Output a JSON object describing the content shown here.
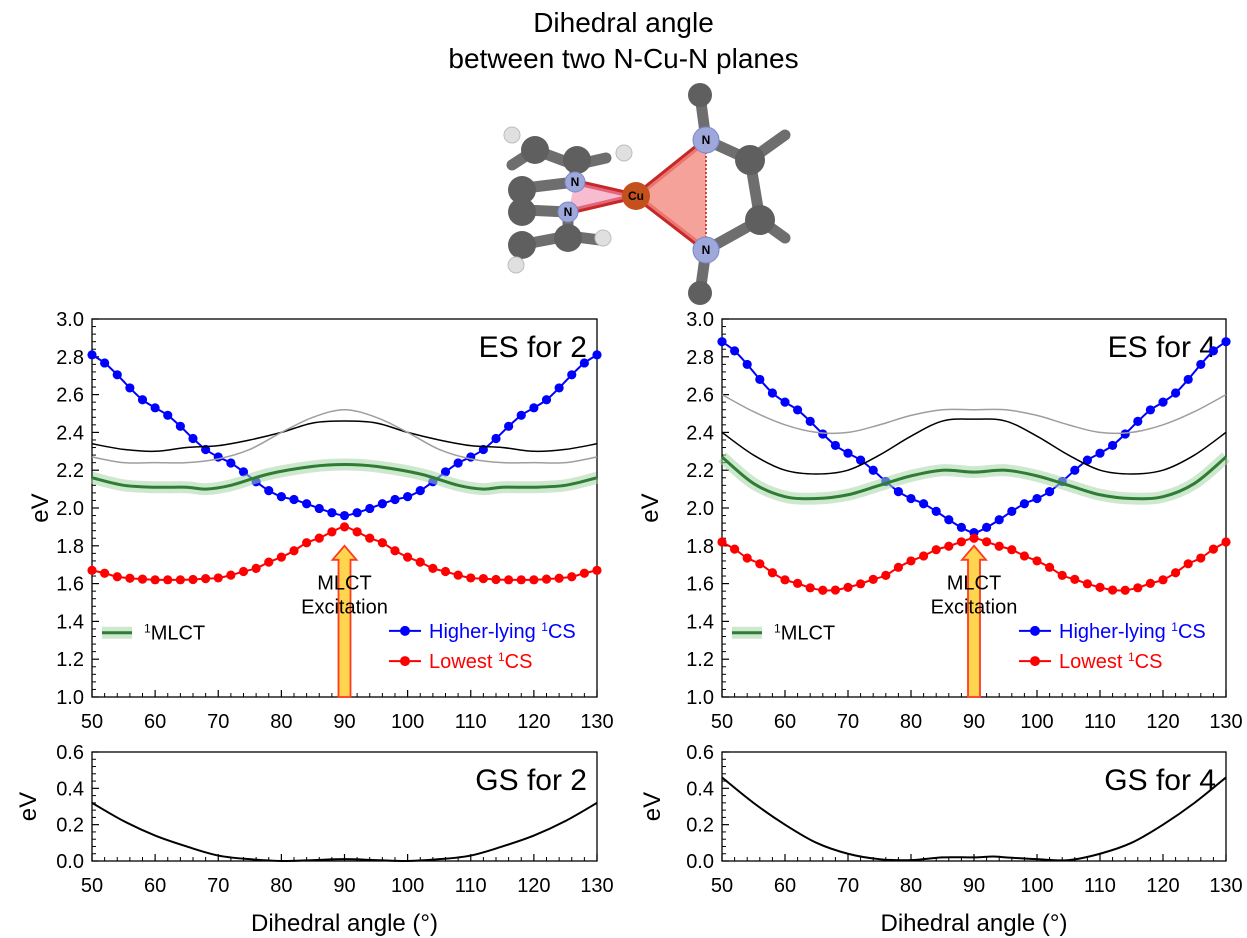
{
  "header": {
    "title_line1": "Dihedral angle",
    "title_line2": "between two N-Cu-N planes"
  },
  "molecule": {
    "atom_labels": [
      "N",
      "N",
      "Cu",
      "N",
      "N"
    ]
  },
  "colors": {
    "higher_cs": "#0000ff",
    "lowest_cs": "#ff0000",
    "mlct": "#2e7d32",
    "mlct_glow": "#a5d6a7",
    "upper_black": "#000000",
    "upper_gray": "#9e9e9e",
    "arrow_fill": "#ffd54f",
    "arrow_stroke": "#ff3b1f",
    "triangle": "#f28b82"
  },
  "legend": {
    "mlct_label": "MLCT",
    "mlct_sup": "1",
    "higher_label": "Higher-lying ",
    "higher_sup": "1",
    "higher_tail": "CS",
    "lowest_label": "Lowest ",
    "lowest_sup": "1",
    "lowest_tail": "CS"
  },
  "chart_data": [
    {
      "id": "es2",
      "type": "line",
      "panel_label": "ES for 2",
      "ylabel": "eV",
      "xlim": [
        50,
        130
      ],
      "ylim": [
        1.0,
        3.0
      ],
      "yticks": [
        "1.0",
        "1.2",
        "1.4",
        "1.6",
        "1.8",
        "2.0",
        "2.2",
        "2.4",
        "2.6",
        "2.8",
        "3.0"
      ],
      "xticks": [
        "50",
        "60",
        "70",
        "80",
        "90",
        "100",
        "110",
        "120",
        "130"
      ],
      "annotation": [
        "MLCT",
        "Excitation"
      ],
      "annotation_x": 90,
      "series": [
        {
          "key": "higher",
          "points": [
            [
              50,
              2.81
            ],
            [
              60,
              2.53
            ],
            [
              70,
              2.27
            ],
            [
              80,
              2.06
            ],
            [
              90,
              1.96
            ],
            [
              100,
              2.06
            ],
            [
              110,
              2.27
            ],
            [
              120,
              2.53
            ],
            [
              130,
              2.81
            ]
          ]
        },
        {
          "key": "lowest",
          "points": [
            [
              50,
              1.67
            ],
            [
              55,
              1.63
            ],
            [
              60,
              1.62
            ],
            [
              65,
              1.62
            ],
            [
              70,
              1.63
            ],
            [
              75,
              1.67
            ],
            [
              80,
              1.74
            ],
            [
              85,
              1.83
            ],
            [
              90,
              1.9
            ],
            [
              95,
              1.83
            ],
            [
              100,
              1.74
            ],
            [
              105,
              1.67
            ],
            [
              110,
              1.63
            ],
            [
              115,
              1.62
            ],
            [
              120,
              1.62
            ],
            [
              125,
              1.63
            ],
            [
              130,
              1.67
            ]
          ]
        },
        {
          "key": "mlct",
          "points": [
            [
              50,
              2.16
            ],
            [
              55,
              2.12
            ],
            [
              60,
              2.11
            ],
            [
              65,
              2.11
            ],
            [
              68,
              2.1
            ],
            [
              72,
              2.12
            ],
            [
              78,
              2.18
            ],
            [
              85,
              2.22
            ],
            [
              90,
              2.23
            ],
            [
              95,
              2.22
            ],
            [
              102,
              2.18
            ],
            [
              108,
              2.12
            ],
            [
              112,
              2.1
            ],
            [
              115,
              2.11
            ],
            [
              120,
              2.11
            ],
            [
              125,
              2.12
            ],
            [
              130,
              2.16
            ]
          ]
        },
        {
          "key": "upper_black",
          "points": [
            [
              50,
              2.34
            ],
            [
              55,
              2.31
            ],
            [
              60,
              2.3
            ],
            [
              65,
              2.32
            ],
            [
              70,
              2.33
            ],
            [
              75,
              2.36
            ],
            [
              80,
              2.4
            ],
            [
              85,
              2.45
            ],
            [
              90,
              2.46
            ],
            [
              95,
              2.45
            ],
            [
              100,
              2.4
            ],
            [
              105,
              2.36
            ],
            [
              110,
              2.33
            ],
            [
              115,
              2.32
            ],
            [
              120,
              2.3
            ],
            [
              125,
              2.31
            ],
            [
              130,
              2.34
            ]
          ]
        },
        {
          "key": "upper_gray",
          "points": [
            [
              50,
              2.27
            ],
            [
              55,
              2.24
            ],
            [
              60,
              2.24
            ],
            [
              65,
              2.24
            ],
            [
              70,
              2.26
            ],
            [
              75,
              2.31
            ],
            [
              80,
              2.4
            ],
            [
              85,
              2.48
            ],
            [
              90,
              2.52
            ],
            [
              95,
              2.48
            ],
            [
              100,
              2.4
            ],
            [
              105,
              2.31
            ],
            [
              110,
              2.26
            ],
            [
              115,
              2.24
            ],
            [
              120,
              2.24
            ],
            [
              125,
              2.24
            ],
            [
              130,
              2.27
            ]
          ]
        }
      ]
    },
    {
      "id": "es4",
      "type": "line",
      "panel_label": "ES for 4",
      "ylabel": "eV",
      "xlim": [
        50,
        130
      ],
      "ylim": [
        1.0,
        3.0
      ],
      "yticks": [
        "1.0",
        "1.2",
        "1.4",
        "1.6",
        "1.8",
        "2.0",
        "2.2",
        "2.4",
        "2.6",
        "2.8",
        "3.0"
      ],
      "xticks": [
        "50",
        "60",
        "70",
        "80",
        "90",
        "100",
        "110",
        "120",
        "130"
      ],
      "annotation": [
        "MLCT",
        "Excitation"
      ],
      "annotation_x": 90,
      "series": [
        {
          "key": "higher",
          "points": [
            [
              50,
              2.88
            ],
            [
              60,
              2.56
            ],
            [
              70,
              2.29
            ],
            [
              80,
              2.05
            ],
            [
              90,
              1.87
            ],
            [
              100,
              2.05
            ],
            [
              110,
              2.29
            ],
            [
              120,
              2.56
            ],
            [
              130,
              2.88
            ]
          ]
        },
        {
          "key": "lowest",
          "points": [
            [
              50,
              1.82
            ],
            [
              55,
              1.72
            ],
            [
              60,
              1.62
            ],
            [
              65,
              1.57
            ],
            [
              67,
              1.56
            ],
            [
              70,
              1.58
            ],
            [
              75,
              1.63
            ],
            [
              80,
              1.72
            ],
            [
              85,
              1.79
            ],
            [
              90,
              1.84
            ],
            [
              95,
              1.79
            ],
            [
              100,
              1.72
            ],
            [
              105,
              1.63
            ],
            [
              110,
              1.58
            ],
            [
              113,
              1.56
            ],
            [
              115,
              1.57
            ],
            [
              120,
              1.62
            ],
            [
              125,
              1.72
            ],
            [
              130,
              1.82
            ]
          ]
        },
        {
          "key": "mlct",
          "points": [
            [
              50,
              2.27
            ],
            [
              55,
              2.13
            ],
            [
              60,
              2.06
            ],
            [
              65,
              2.05
            ],
            [
              70,
              2.07
            ],
            [
              75,
              2.12
            ],
            [
              80,
              2.17
            ],
            [
              85,
              2.2
            ],
            [
              90,
              2.19
            ],
            [
              95,
              2.2
            ],
            [
              100,
              2.17
            ],
            [
              105,
              2.12
            ],
            [
              110,
              2.07
            ],
            [
              115,
              2.05
            ],
            [
              120,
              2.06
            ],
            [
              125,
              2.13
            ],
            [
              130,
              2.27
            ]
          ]
        },
        {
          "key": "upper_black",
          "points": [
            [
              50,
              2.4
            ],
            [
              55,
              2.28
            ],
            [
              60,
              2.2
            ],
            [
              65,
              2.18
            ],
            [
              70,
              2.2
            ],
            [
              75,
              2.28
            ],
            [
              80,
              2.38
            ],
            [
              85,
              2.46
            ],
            [
              90,
              2.47
            ],
            [
              95,
              2.46
            ],
            [
              100,
              2.38
            ],
            [
              105,
              2.28
            ],
            [
              110,
              2.2
            ],
            [
              115,
              2.18
            ],
            [
              120,
              2.2
            ],
            [
              125,
              2.28
            ],
            [
              130,
              2.4
            ]
          ]
        },
        {
          "key": "upper_gray",
          "points": [
            [
              50,
              2.6
            ],
            [
              55,
              2.51
            ],
            [
              60,
              2.44
            ],
            [
              65,
              2.4
            ],
            [
              70,
              2.4
            ],
            [
              75,
              2.44
            ],
            [
              80,
              2.49
            ],
            [
              85,
              2.52
            ],
            [
              90,
              2.52
            ],
            [
              95,
              2.52
            ],
            [
              100,
              2.49
            ],
            [
              105,
              2.44
            ],
            [
              110,
              2.4
            ],
            [
              115,
              2.4
            ],
            [
              120,
              2.44
            ],
            [
              125,
              2.51
            ],
            [
              130,
              2.6
            ]
          ]
        }
      ]
    },
    {
      "id": "gs2",
      "type": "line",
      "panel_label": "GS for 2",
      "ylabel": "eV",
      "xlabel": "Dihedral angle (°)",
      "xlim": [
        50,
        130
      ],
      "ylim": [
        0.0,
        0.6
      ],
      "yticks": [
        "0.0",
        "0.2",
        "0.4",
        "0.6"
      ],
      "xticks": [
        "50",
        "60",
        "70",
        "80",
        "90",
        "100",
        "110",
        "120",
        "130"
      ],
      "series": [
        {
          "key": "gs",
          "points": [
            [
              50,
              0.32
            ],
            [
              55,
              0.22
            ],
            [
              60,
              0.14
            ],
            [
              65,
              0.08
            ],
            [
              70,
              0.03
            ],
            [
              75,
              0.01
            ],
            [
              80,
              0.0
            ],
            [
              85,
              0.005
            ],
            [
              90,
              0.01
            ],
            [
              95,
              0.005
            ],
            [
              100,
              0.0
            ],
            [
              105,
              0.01
            ],
            [
              110,
              0.03
            ],
            [
              115,
              0.08
            ],
            [
              120,
              0.14
            ],
            [
              125,
              0.22
            ],
            [
              130,
              0.32
            ]
          ]
        }
      ]
    },
    {
      "id": "gs4",
      "type": "line",
      "panel_label": "GS for 4",
      "ylabel": "eV",
      "xlabel": "Dihedral angle (°)",
      "xlim": [
        50,
        130
      ],
      "ylim": [
        0.0,
        0.6
      ],
      "yticks": [
        "0.0",
        "0.2",
        "0.4",
        "0.6"
      ],
      "xticks": [
        "50",
        "60",
        "70",
        "80",
        "90",
        "100",
        "110",
        "120",
        "130"
      ],
      "series": [
        {
          "key": "gs",
          "points": [
            [
              50,
              0.46
            ],
            [
              55,
              0.32
            ],
            [
              60,
              0.2
            ],
            [
              65,
              0.1
            ],
            [
              70,
              0.04
            ],
            [
              75,
              0.01
            ],
            [
              80,
              0.005
            ],
            [
              85,
              0.02
            ],
            [
              90,
              0.02
            ],
            [
              93,
              0.025
            ],
            [
              95,
              0.02
            ],
            [
              100,
              0.01
            ],
            [
              105,
              0.005
            ],
            [
              110,
              0.04
            ],
            [
              115,
              0.1
            ],
            [
              120,
              0.2
            ],
            [
              125,
              0.32
            ],
            [
              130,
              0.46
            ]
          ]
        }
      ]
    }
  ]
}
